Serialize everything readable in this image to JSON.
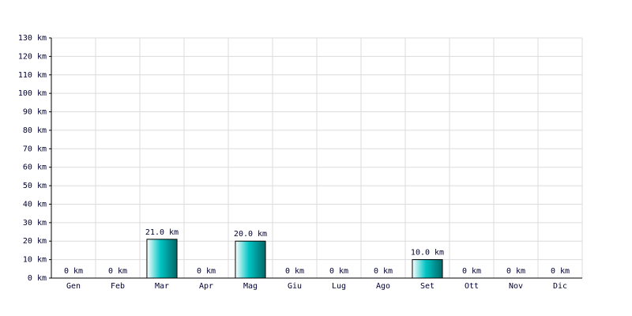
{
  "chart_data": {
    "type": "bar",
    "categories": [
      "Gen",
      "Feb",
      "Mar",
      "Apr",
      "Mag",
      "Giu",
      "Lug",
      "Ago",
      "Set",
      "Ott",
      "Nov",
      "Dic"
    ],
    "values": [
      0,
      0,
      21,
      0,
      20,
      0,
      0,
      0,
      10,
      0,
      0,
      0
    ],
    "value_labels": [
      "0 km",
      "0 km",
      "21.0 km",
      "0 km",
      "20.0 km",
      "0 km",
      "0 km",
      "0 km",
      "10.0 km",
      "0 km",
      "0 km",
      "0 km"
    ],
    "color": "#00c4c4",
    "ylim": [
      0,
      130
    ],
    "yticks": [
      {
        "value": 0,
        "label": "0 km"
      },
      {
        "value": 10,
        "label": "10 km"
      },
      {
        "value": 20,
        "label": "20 km"
      },
      {
        "value": 30,
        "label": "30 km"
      },
      {
        "value": 40,
        "label": "40 km"
      },
      {
        "value": 50,
        "label": "50 km"
      },
      {
        "value": 60,
        "label": "60 km"
      },
      {
        "value": 70,
        "label": "70 km"
      },
      {
        "value": 80,
        "label": "80 km"
      },
      {
        "value": 90,
        "label": "90 km"
      },
      {
        "value": 100,
        "label": "100 km"
      },
      {
        "value": 110,
        "label": "110 km"
      },
      {
        "value": 120,
        "label": "120 km"
      },
      {
        "value": 130,
        "label": "130 km"
      }
    ],
    "grid": true
  }
}
